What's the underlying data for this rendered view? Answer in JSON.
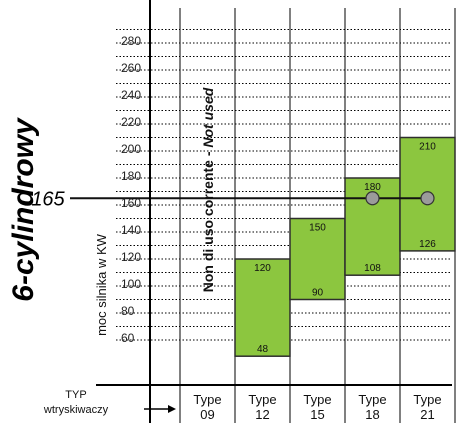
{
  "chart_data": {
    "type": "bar",
    "title": "6-cylindrowy",
    "ylabel": "moc silnika w KW",
    "xlabel": "TYP wtryskiwaczy",
    "xlabel_line1": "TYP",
    "xlabel_line2": "wtryskiwaczy",
    "ylim": [
      50,
      290
    ],
    "y_ticks": [
      "60",
      "80",
      "100",
      "120",
      "140",
      "160",
      "180",
      "200",
      "220",
      "240",
      "260",
      "280"
    ],
    "categories": [
      "Type 09",
      "Type 12",
      "Type 15",
      "Type 18",
      "Type 21"
    ],
    "category_top": [
      "Type",
      "Type",
      "Type",
      "Type",
      "Type"
    ],
    "category_bottom": [
      "09",
      "12",
      "15",
      "18",
      "21"
    ],
    "ranges": [
      null,
      {
        "low": 48,
        "high": 120,
        "low_label": "48",
        "high_label": "120"
      },
      {
        "low": 90,
        "high": 150,
        "low_label": "90",
        "high_label": "150"
      },
      {
        "low": 108,
        "high": 180,
        "low_label": "108",
        "high_label": "180"
      },
      {
        "low": 126,
        "high": 210,
        "low_label": "126",
        "high_label": "210"
      }
    ],
    "reference_line": {
      "value": 165,
      "label": "165"
    },
    "reference_points": [
      {
        "category": "Type 18",
        "value": 165
      },
      {
        "category": "Type 21",
        "value": 165
      }
    ],
    "annotation": {
      "text": "Non di uso corrente - ",
      "italic": "Not used",
      "category": "Type 09"
    },
    "grid": true,
    "colors": {
      "bar_fill": "#8cc63f",
      "bar_stroke": "#2e2e2e",
      "grid": "#000000",
      "point": "#9b9b9b"
    }
  }
}
